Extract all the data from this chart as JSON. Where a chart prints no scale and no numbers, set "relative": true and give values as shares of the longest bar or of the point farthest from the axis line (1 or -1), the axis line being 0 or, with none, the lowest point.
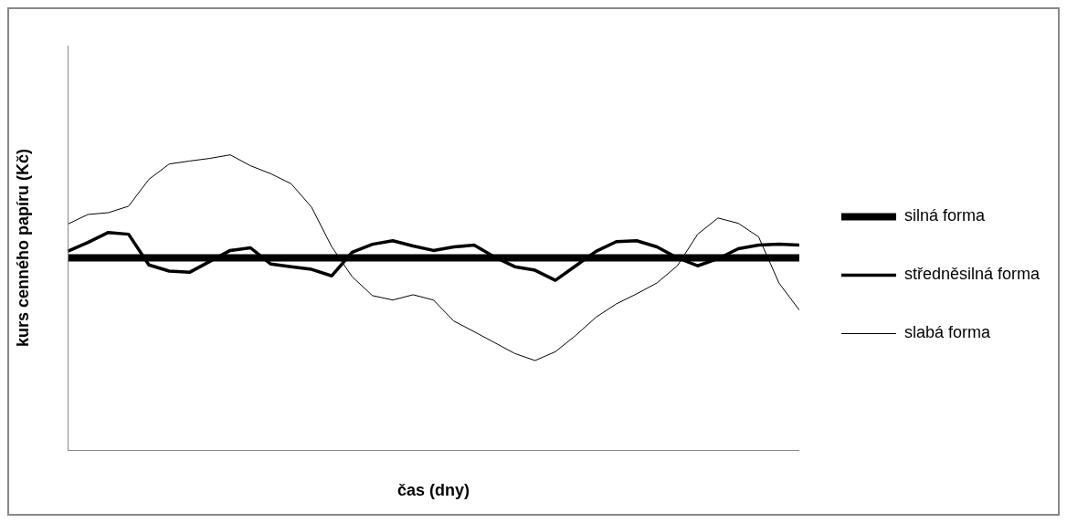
{
  "chart_data": {
    "type": "line",
    "xlabel": "čas (dny)",
    "ylabel": "kurs cenného papíru (Kč)",
    "relative": true,
    "legend": "right",
    "grid": false,
    "marker": "none",
    "categories": [
      null,
      null,
      null,
      null,
      null,
      null,
      null,
      null,
      null,
      null,
      null,
      null,
      null,
      null,
      null,
      null,
      null,
      null,
      null,
      null,
      null,
      null,
      null,
      null,
      null,
      null,
      null,
      null,
      null,
      null,
      null,
      null,
      null,
      null,
      null,
      null,
      null
    ],
    "series": [
      {
        "name": "silná forma",
        "color": "#000000",
        "values": [
          0.651,
          0.651,
          0.651,
          0.651,
          0.651,
          0.651,
          0.651,
          0.651,
          0.651,
          0.651,
          0.651,
          0.651,
          0.651,
          0.651,
          0.651,
          0.651,
          0.651,
          0.651,
          0.651,
          0.651,
          0.651,
          0.651,
          0.651,
          0.651,
          0.651,
          0.651,
          0.651,
          0.651,
          0.651,
          0.651,
          0.651,
          0.651,
          0.651,
          0.651,
          0.651,
          0.651,
          0.651
        ]
      },
      {
        "name": "středněsilná forma",
        "color": "#000000",
        "values": [
          0.673,
          0.703,
          0.737,
          0.731,
          0.627,
          0.606,
          0.602,
          0.639,
          0.676,
          0.685,
          0.63,
          0.621,
          0.612,
          0.59,
          0.67,
          0.697,
          0.709,
          0.691,
          0.676,
          0.688,
          0.694,
          0.654,
          0.621,
          0.609,
          0.575,
          0.624,
          0.673,
          0.706,
          0.709,
          0.688,
          0.651,
          0.624,
          0.648,
          0.682,
          0.694,
          0.697,
          0.694
        ]
      },
      {
        "name": "slabá forma",
        "color": "#000000",
        "values": [
          0.765,
          0.798,
          0.804,
          0.826,
          0.917,
          0.969,
          0.979,
          0.988,
          1,
          0.963,
          0.936,
          0.902,
          0.823,
          0.688,
          0.587,
          0.523,
          0.508,
          0.526,
          0.508,
          0.437,
          0.401,
          0.364,
          0.327,
          0.303,
          0.333,
          0.388,
          0.45,
          0.495,
          0.529,
          0.566,
          0.624,
          0.731,
          0.786,
          0.768,
          0.722,
          0.566,
          0.474
        ]
      }
    ]
  }
}
